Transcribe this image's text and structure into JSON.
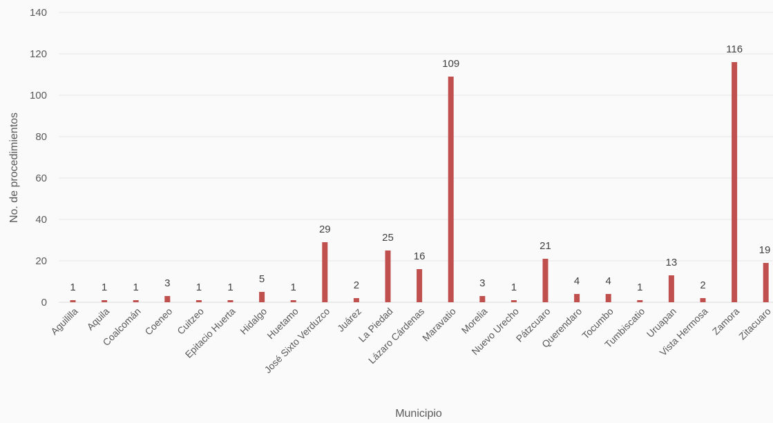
{
  "chart_data": {
    "type": "bar",
    "xlabel": "Municipio",
    "ylabel": "No. de procedimientos",
    "ylim": [
      0,
      140
    ],
    "yticks": [
      0,
      20,
      40,
      60,
      80,
      100,
      120,
      140
    ],
    "grid": true,
    "legend": "none",
    "bar_color": "#c0504d",
    "categories": [
      "Aguililla",
      "Aquila",
      "Coalcomán",
      "Coeneo",
      "Cuitzeo",
      "Epitacio Huerta",
      "Hidalgo",
      "Huetamo",
      "José Sixto Verduzco",
      "Juárez",
      "La Piedad",
      "Lázaro Cárdenas",
      "Maravatio",
      "Morelia",
      "Nuevo Urecho",
      "Pátzcuaro",
      "Querendaro",
      "Tocumbo",
      "Tumbiscatio",
      "Uruapan",
      "Vista Hermosa",
      "Zamora",
      "Zitacuaro"
    ],
    "values": [
      1,
      1,
      1,
      3,
      1,
      1,
      5,
      1,
      29,
      2,
      25,
      16,
      109,
      3,
      1,
      21,
      4,
      4,
      1,
      13,
      2,
      116,
      19
    ]
  }
}
